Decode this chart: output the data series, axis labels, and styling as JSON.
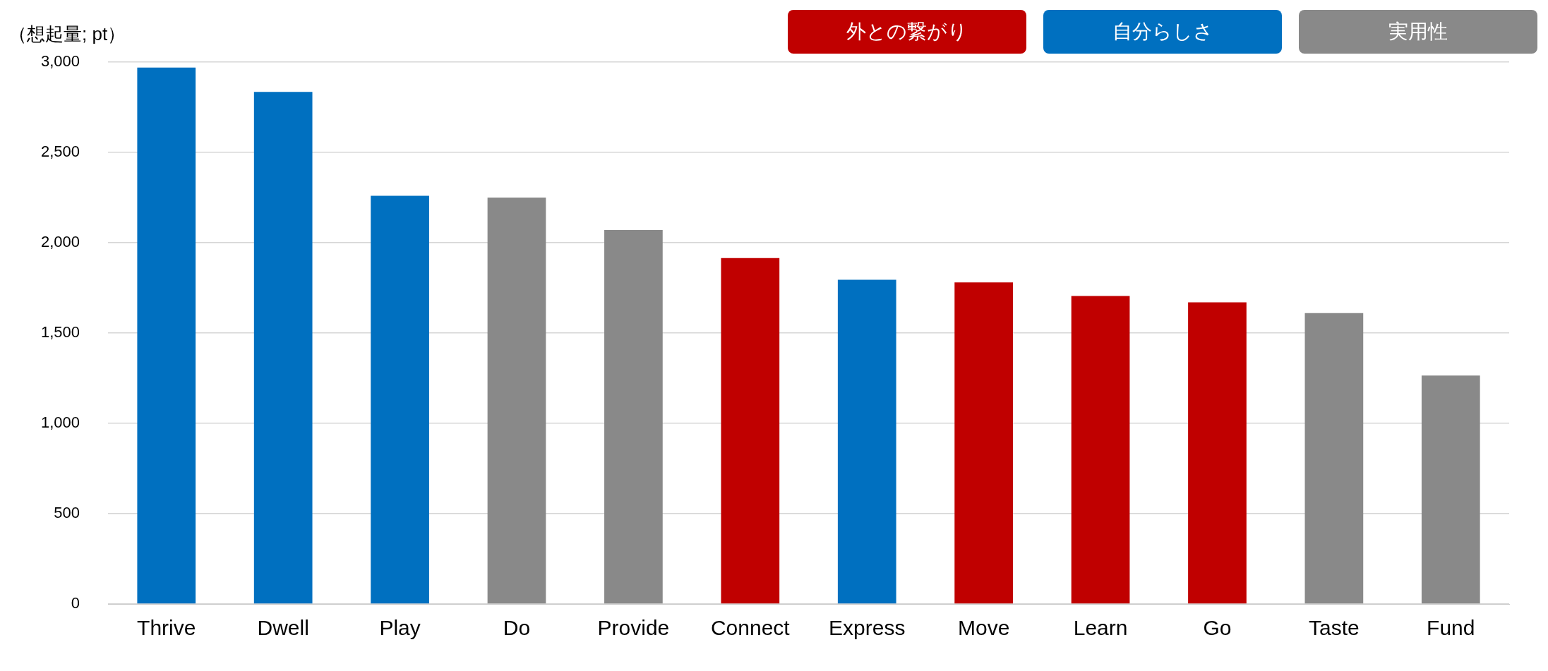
{
  "chart_data": {
    "type": "bar",
    "ylabel": "（想起量; pt）",
    "categories": [
      "Thrive",
      "Dwell",
      "Play",
      "Do",
      "Provide",
      "Connect",
      "Express",
      "Move",
      "Learn",
      "Go",
      "Taste",
      "Fund"
    ],
    "stacked": true,
    "series": [
      {
        "name": "外との繋がり",
        "color": "#c00000",
        "values": [
          null,
          null,
          null,
          null,
          null,
          1915,
          null,
          1780,
          1705,
          1670,
          null,
          null
        ]
      },
      {
        "name": "自分らしさ",
        "color": "#0070c0",
        "values": [
          2970,
          2835,
          2260,
          null,
          null,
          null,
          1795,
          null,
          null,
          null,
          null,
          null
        ]
      },
      {
        "name": "実用性",
        "color": "#898989",
        "values": [
          null,
          null,
          null,
          2250,
          2070,
          null,
          null,
          null,
          null,
          null,
          1610,
          1265
        ]
      }
    ],
    "ylim": [
      0,
      3000
    ],
    "yticks": [
      0,
      500,
      {
        "value": 1000,
        "label": "1,000"
      },
      {
        "value": 1500,
        "label": "1,500"
      },
      {
        "value": 2000,
        "label": "2,000"
      },
      {
        "value": 2500,
        "label": "2,500"
      },
      {
        "value": 3000,
        "label": "3,000"
      }
    ],
    "grid": "y",
    "legend": "top right"
  }
}
